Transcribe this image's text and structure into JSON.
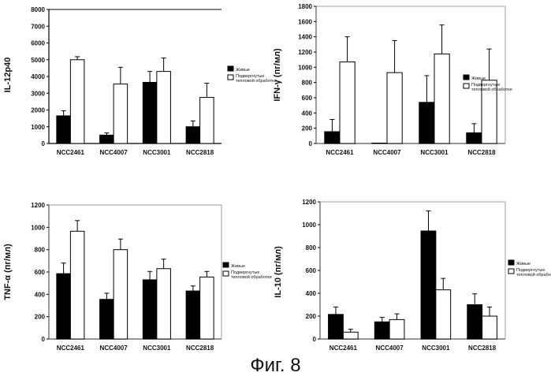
{
  "caption": "Фиг. 8",
  "colors": {
    "live": "#000000",
    "heat": "#ffffff",
    "axis": "#000000"
  },
  "chart_data": [
    {
      "type": "bar",
      "ylabel": "IL-12p40",
      "ylim": [
        0,
        8000
      ],
      "yticks": [
        0,
        1000,
        2000,
        3000,
        4000,
        5000,
        6000,
        7000,
        8000
      ],
      "categories": [
        "NCC2461",
        "NCC4007",
        "NCC3001",
        "NCC2818"
      ],
      "series": [
        {
          "name": "Живые",
          "values": [
            1650,
            500,
            3650,
            1000
          ],
          "errors": [
            300,
            130,
            650,
            350
          ]
        },
        {
          "name": "Подвергнутые тепловой обработке",
          "values": [
            5000,
            3550,
            4300,
            2750
          ],
          "errors": [
            180,
            1000,
            800,
            850
          ]
        }
      ],
      "legend": "right",
      "top_frame": true
    },
    {
      "type": "bar",
      "ylabel": "IFN-γ (пг/мл)",
      "ylim": [
        0,
        1800
      ],
      "yticks": [
        0,
        200,
        400,
        600,
        800,
        1000,
        1200,
        1400,
        1600,
        1800
      ],
      "categories": [
        "NCC2461",
        "NCC4007",
        "NCC3001",
        "NCC2818"
      ],
      "series": [
        {
          "name": "Живые",
          "values": [
            155,
            5,
            540,
            140
          ],
          "errors": [
            160,
            0,
            350,
            120
          ]
        },
        {
          "name": "Подвергнутые тепловой обработке",
          "values": [
            1070,
            930,
            1175,
            830
          ],
          "errors": [
            330,
            420,
            380,
            410
          ]
        }
      ],
      "legend": "right",
      "top_frame": false
    },
    {
      "type": "bar",
      "ylabel": "TNF-α (пг/мл)",
      "ylim": [
        0,
        1200
      ],
      "yticks": [
        0,
        200,
        400,
        600,
        800,
        1000,
        1200
      ],
      "categories": [
        "NCC2461",
        "NCC4007",
        "NCC3001",
        "NCC2818"
      ],
      "series": [
        {
          "name": "Живые",
          "values": [
            585,
            355,
            530,
            430
          ],
          "errors": [
            95,
            55,
            75,
            45
          ]
        },
        {
          "name": "Подвергнутые тепловой обработке",
          "values": [
            965,
            800,
            630,
            555
          ],
          "errors": [
            95,
            95,
            85,
            50
          ]
        }
      ],
      "legend": "right",
      "top_frame": false
    },
    {
      "type": "bar",
      "ylabel": "IL-10 (пг/мл)",
      "ylim": [
        0,
        1200
      ],
      "yticks": [
        0,
        200,
        400,
        600,
        800,
        1000,
        1200
      ],
      "categories": [
        "NCC2461",
        "NCC4007",
        "NCC3001",
        "NCC2818"
      ],
      "series": [
        {
          "name": "Живые",
          "values": [
            215,
            150,
            945,
            300
          ],
          "errors": [
            65,
            40,
            175,
            95
          ]
        },
        {
          "name": "Подвергнутые тепловой обработке",
          "values": [
            60,
            170,
            430,
            200
          ],
          "errors": [
            25,
            50,
            100,
            80
          ]
        }
      ],
      "legend": "right",
      "top_frame": false
    }
  ]
}
